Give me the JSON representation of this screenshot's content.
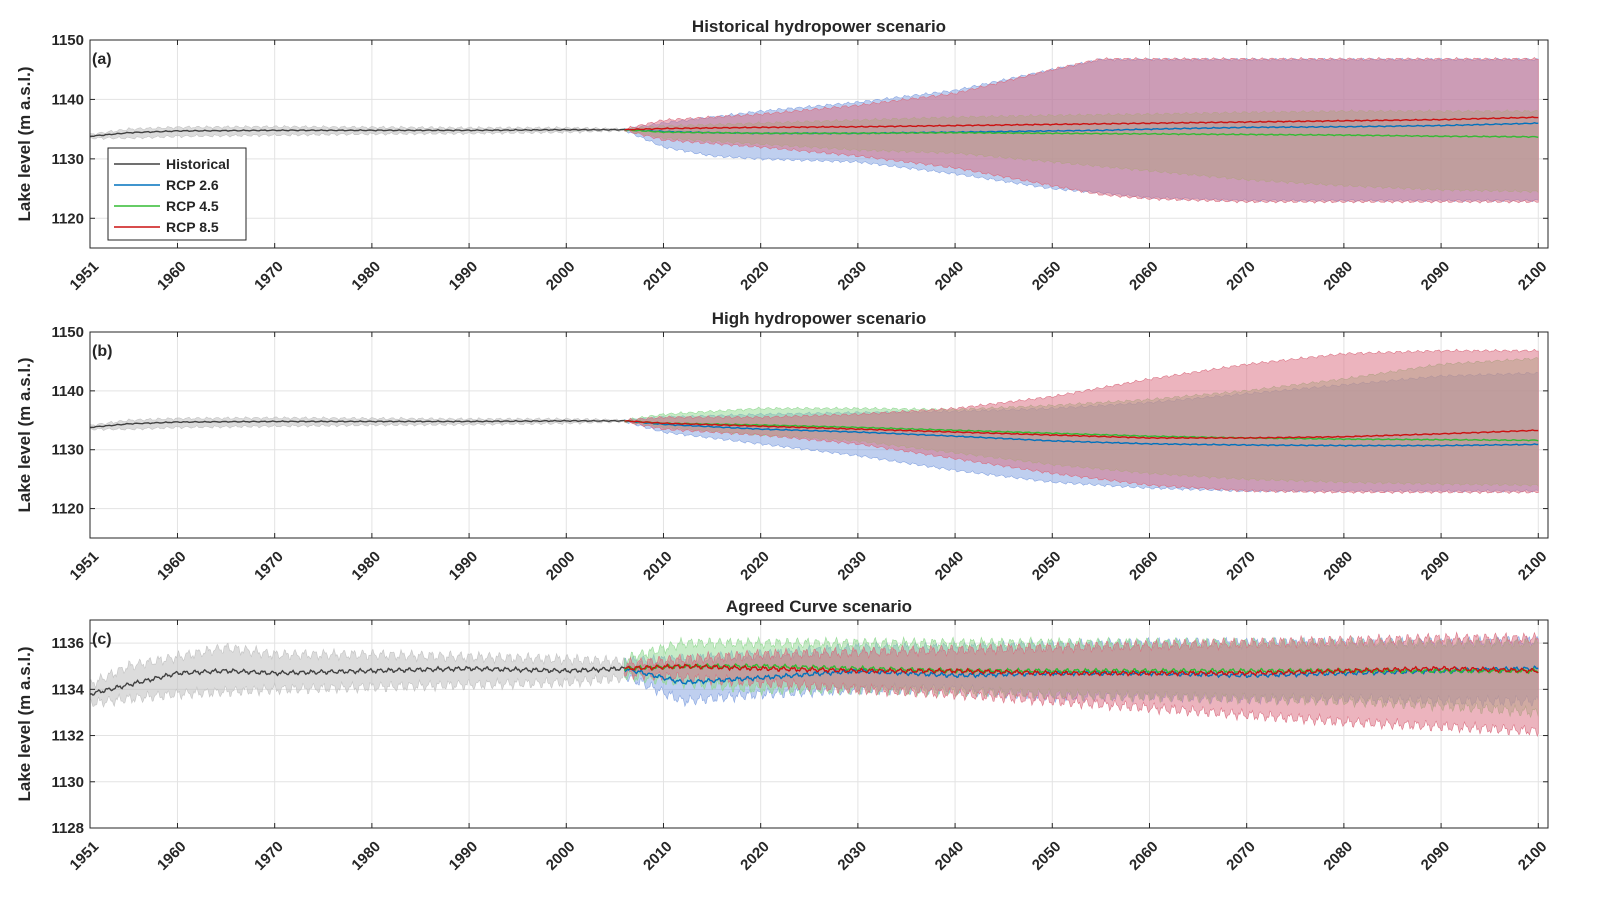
{
  "chart_data": [
    {
      "type": "area",
      "panel_label": "(a)",
      "title": "Historical hydropower scenario",
      "ylabel": "Lake level (m a.s.l.)",
      "xlim": [
        1951,
        2101
      ],
      "ylim": [
        1115,
        1150
      ],
      "xticks": [
        1951,
        1960,
        1970,
        1980,
        1990,
        2000,
        2010,
        2020,
        2030,
        2040,
        2050,
        2060,
        2070,
        2080,
        2090,
        2100
      ],
      "yticks": [
        1120,
        1130,
        1140,
        1150
      ],
      "grid": true,
      "legend": {
        "placement": "left",
        "entries": [
          "Historical",
          "RCP 2.6",
          "RCP 4.5",
          "RCP 8.5"
        ]
      },
      "series": [
        {
          "name": "Historical",
          "color": "#404040",
          "x": [
            1951,
            1955,
            1960,
            1970,
            1980,
            1990,
            2000,
            2006
          ],
          "mean": [
            1133.8,
            1134.4,
            1134.7,
            1134.8,
            1134.8,
            1134.8,
            1134.9,
            1134.9
          ],
          "lower": [
            1133.5,
            1133.5,
            1133.8,
            1134.0,
            1134.2,
            1134.3,
            1134.5,
            1134.8
          ],
          "upper": [
            1134.1,
            1135.0,
            1135.3,
            1135.4,
            1135.3,
            1135.2,
            1135.2,
            1135.0
          ]
        },
        {
          "name": "RCP 2.6",
          "color": "#0072BD",
          "fill": "#7FA0E0",
          "x": [
            2006,
            2010,
            2015,
            2020,
            2030,
            2040,
            2050,
            2055,
            2060,
            2070,
            2080,
            2090,
            2100
          ],
          "mean": [
            1134.9,
            1134.6,
            1134.4,
            1134.3,
            1134.3,
            1134.5,
            1134.7,
            1134.8,
            1135.0,
            1135.3,
            1135.4,
            1135.6,
            1136.0
          ],
          "lower": [
            1134.8,
            1132.0,
            1130.5,
            1130.0,
            1129.5,
            1127.5,
            1125.0,
            1124.3,
            1123.5,
            1123.0,
            1123.0,
            1123.0,
            1123.0
          ],
          "upper": [
            1135.0,
            1136.0,
            1137.0,
            1138.0,
            1139.5,
            1141.5,
            1145.0,
            1146.7,
            1146.7,
            1146.7,
            1146.7,
            1146.7,
            1146.7
          ]
        },
        {
          "name": "RCP 4.5",
          "color": "#33BB33",
          "fill": "#8FD88F",
          "x": [
            2006,
            2010,
            2020,
            2030,
            2040,
            2050,
            2060,
            2070,
            2080,
            2090,
            2100
          ],
          "mean": [
            1134.9,
            1134.5,
            1134.3,
            1134.3,
            1134.4,
            1134.3,
            1134.2,
            1134.1,
            1134.0,
            1133.8,
            1133.7
          ],
          "lower": [
            1134.8,
            1133.5,
            1132.5,
            1131.5,
            1131.0,
            1129.5,
            1128.0,
            1126.5,
            1125.5,
            1124.8,
            1124.5
          ],
          "upper": [
            1135.0,
            1135.5,
            1136.0,
            1136.5,
            1137.0,
            1137.3,
            1137.5,
            1137.8,
            1138.0,
            1138.0,
            1138.0
          ]
        },
        {
          "name": "RCP 8.5",
          "color": "#CC1111",
          "fill": "#D96A7D",
          "x": [
            2006,
            2010,
            2020,
            2030,
            2040,
            2050,
            2055,
            2060,
            2070,
            2080,
            2090,
            2100
          ],
          "mean": [
            1134.9,
            1135.1,
            1135.3,
            1135.4,
            1135.6,
            1135.8,
            1135.9,
            1136.0,
            1136.2,
            1136.4,
            1136.6,
            1137.0
          ],
          "lower": [
            1134.8,
            1133.2,
            1132.0,
            1130.5,
            1128.5,
            1125.5,
            1124.0,
            1123.3,
            1122.8,
            1122.8,
            1122.8,
            1122.8
          ],
          "upper": [
            1135.0,
            1136.5,
            1137.5,
            1139.0,
            1141.0,
            1145.0,
            1146.8,
            1146.8,
            1146.8,
            1146.8,
            1146.8,
            1146.8
          ]
        }
      ]
    },
    {
      "type": "area",
      "panel_label": "(b)",
      "title": "High hydropower scenario",
      "ylabel": "Lake level (m a.s.l.)",
      "xlim": [
        1951,
        2101
      ],
      "ylim": [
        1115,
        1150
      ],
      "xticks": [
        1951,
        1960,
        1970,
        1980,
        1990,
        2000,
        2010,
        2020,
        2030,
        2040,
        2050,
        2060,
        2070,
        2080,
        2090,
        2100
      ],
      "yticks": [
        1120,
        1130,
        1140,
        1150
      ],
      "grid": true,
      "series": [
        {
          "name": "Historical",
          "color": "#404040",
          "x": [
            1951,
            1955,
            1960,
            1970,
            1980,
            1990,
            2000,
            2006
          ],
          "mean": [
            1133.8,
            1134.4,
            1134.7,
            1134.8,
            1134.8,
            1134.8,
            1134.9,
            1134.9
          ],
          "lower": [
            1133.5,
            1133.5,
            1133.8,
            1134.0,
            1134.2,
            1134.3,
            1134.5,
            1134.8
          ],
          "upper": [
            1134.1,
            1135.0,
            1135.3,
            1135.4,
            1135.3,
            1135.2,
            1135.2,
            1135.0
          ]
        },
        {
          "name": "RCP 2.6",
          "color": "#0072BD",
          "fill": "#7FA0E0",
          "x": [
            2006,
            2010,
            2020,
            2030,
            2040,
            2050,
            2060,
            2070,
            2080,
            2090,
            2100
          ],
          "mean": [
            1134.9,
            1134.3,
            1133.5,
            1133.0,
            1132.3,
            1131.5,
            1131.0,
            1130.8,
            1130.7,
            1130.7,
            1130.9
          ],
          "lower": [
            1134.8,
            1133.0,
            1131.0,
            1129.0,
            1126.5,
            1124.5,
            1123.5,
            1123.0,
            1123.0,
            1123.0,
            1123.0
          ],
          "upper": [
            1135.0,
            1135.5,
            1136.0,
            1136.3,
            1136.5,
            1137.0,
            1138.0,
            1139.5,
            1141.0,
            1142.5,
            1143.0
          ]
        },
        {
          "name": "RCP 4.5",
          "color": "#33BB33",
          "fill": "#8FD88F",
          "x": [
            2006,
            2010,
            2020,
            2030,
            2040,
            2050,
            2060,
            2070,
            2080,
            2090,
            2100
          ],
          "mean": [
            1134.9,
            1134.5,
            1134.2,
            1133.8,
            1133.3,
            1132.8,
            1132.3,
            1132.0,
            1131.8,
            1131.7,
            1131.6
          ],
          "lower": [
            1134.8,
            1133.8,
            1132.5,
            1131.5,
            1129.5,
            1127.5,
            1126.0,
            1125.0,
            1124.5,
            1124.2,
            1124.0
          ],
          "upper": [
            1135.0,
            1136.0,
            1137.0,
            1137.0,
            1136.8,
            1137.5,
            1138.5,
            1140.0,
            1142.0,
            1144.5,
            1145.5
          ]
        },
        {
          "name": "RCP 8.5",
          "color": "#CC1111",
          "fill": "#D96A7D",
          "x": [
            2006,
            2010,
            2020,
            2030,
            2040,
            2050,
            2060,
            2070,
            2080,
            2090,
            2100
          ],
          "mean": [
            1134.9,
            1134.5,
            1134.0,
            1133.5,
            1133.0,
            1132.5,
            1132.0,
            1132.0,
            1132.2,
            1132.7,
            1133.3
          ],
          "lower": [
            1134.8,
            1133.5,
            1132.5,
            1131.0,
            1128.5,
            1126.0,
            1124.0,
            1123.0,
            1122.8,
            1122.8,
            1122.8
          ],
          "upper": [
            1135.0,
            1135.5,
            1135.5,
            1136.0,
            1137.0,
            1139.0,
            1142.0,
            1144.5,
            1146.3,
            1146.8,
            1146.8
          ]
        }
      ]
    },
    {
      "type": "area",
      "panel_label": "(c)",
      "title": "Agreed Curve scenario",
      "ylabel": "Lake level (m a.s.l.)",
      "xlim": [
        1951,
        2101
      ],
      "ylim": [
        1128,
        1137
      ],
      "xticks": [
        1951,
        1960,
        1970,
        1980,
        1990,
        2000,
        2010,
        2020,
        2030,
        2040,
        2050,
        2060,
        2070,
        2080,
        2090,
        2100
      ],
      "yticks": [
        1128,
        1130,
        1132,
        1134,
        1136
      ],
      "grid": true,
      "series": [
        {
          "name": "Historical",
          "color": "#404040",
          "x": [
            1951,
            1955,
            1960,
            1965,
            1970,
            1980,
            1990,
            2000,
            2006
          ],
          "mean": [
            1133.8,
            1134.2,
            1134.7,
            1134.8,
            1134.7,
            1134.8,
            1134.9,
            1134.8,
            1134.9
          ],
          "lower": [
            1133.4,
            1133.6,
            1133.8,
            1133.9,
            1134.0,
            1134.1,
            1134.2,
            1134.3,
            1134.5
          ],
          "upper": [
            1134.2,
            1135.0,
            1135.4,
            1135.8,
            1135.5,
            1135.5,
            1135.4,
            1135.3,
            1135.2
          ]
        },
        {
          "name": "RCP 2.6",
          "color": "#0072BD",
          "fill": "#7FA0E0",
          "x": [
            2006,
            2012,
            2020,
            2030,
            2040,
            2050,
            2060,
            2070,
            2080,
            2090,
            2100
          ],
          "mean": [
            1134.9,
            1134.3,
            1134.5,
            1134.8,
            1134.6,
            1134.7,
            1134.7,
            1134.6,
            1134.7,
            1134.8,
            1134.9
          ],
          "lower": [
            1134.6,
            1133.5,
            1133.8,
            1134.0,
            1134.0,
            1133.7,
            1133.7,
            1133.6,
            1133.6,
            1133.5,
            1133.5
          ],
          "upper": [
            1135.2,
            1135.3,
            1135.5,
            1135.8,
            1135.8,
            1135.9,
            1136.0,
            1136.0,
            1136.0,
            1136.0,
            1136.1
          ]
        },
        {
          "name": "RCP 4.5",
          "color": "#33BB33",
          "fill": "#8FD88F",
          "x": [
            2006,
            2012,
            2020,
            2030,
            2040,
            2050,
            2060,
            2070,
            2080,
            2090,
            2100
          ],
          "mean": [
            1134.9,
            1135.0,
            1135.0,
            1134.9,
            1134.8,
            1134.8,
            1134.8,
            1134.8,
            1134.8,
            1134.8,
            1134.8
          ],
          "lower": [
            1134.6,
            1134.3,
            1134.0,
            1134.0,
            1133.9,
            1133.8,
            1133.7,
            1133.6,
            1133.5,
            1133.3,
            1133.0
          ],
          "upper": [
            1135.3,
            1136.0,
            1136.0,
            1136.0,
            1136.0,
            1136.0,
            1136.0,
            1136.0,
            1136.0,
            1136.0,
            1136.0
          ]
        },
        {
          "name": "RCP 8.5",
          "color": "#CC1111",
          "fill": "#D96A7D",
          "x": [
            2006,
            2012,
            2020,
            2030,
            2040,
            2050,
            2060,
            2070,
            2080,
            2090,
            2100
          ],
          "mean": [
            1134.9,
            1135.0,
            1134.9,
            1134.8,
            1134.8,
            1134.7,
            1134.7,
            1134.7,
            1134.8,
            1134.9,
            1134.8
          ],
          "lower": [
            1134.7,
            1134.5,
            1134.3,
            1134.0,
            1133.8,
            1133.5,
            1133.2,
            1132.9,
            1132.6,
            1132.4,
            1132.2
          ],
          "upper": [
            1135.1,
            1135.3,
            1135.5,
            1135.6,
            1135.7,
            1135.8,
            1135.9,
            1136.0,
            1136.1,
            1136.2,
            1136.2
          ]
        }
      ]
    }
  ]
}
